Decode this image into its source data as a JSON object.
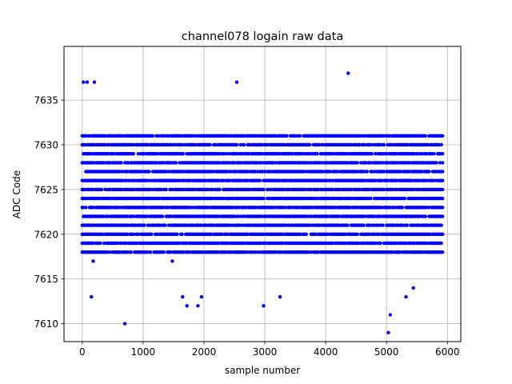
{
  "chart_data": {
    "type": "scatter",
    "title": "channel078 logain raw data",
    "xlabel": "sample number",
    "ylabel": "ADC Code",
    "xlim": [
      -300,
      6220
    ],
    "ylim": [
      7608,
      7641
    ],
    "xticks": [
      0,
      1000,
      2000,
      3000,
      4000,
      5000,
      6000
    ],
    "yticks": [
      7610,
      7615,
      7620,
      7625,
      7630,
      7635
    ],
    "grid": true,
    "marker_color": "#0000ff",
    "n_samples": 5920,
    "sample_step": 20,
    "dense_band": [
      7618,
      7631
    ],
    "outliers": [
      {
        "x": 20,
        "y": 7637
      },
      {
        "x": 80,
        "y": 7637
      },
      {
        "x": 200,
        "y": 7637
      },
      {
        "x": 2540,
        "y": 7637
      },
      {
        "x": 4370,
        "y": 7638
      },
      {
        "x": 150,
        "y": 7613
      },
      {
        "x": 700,
        "y": 7610
      },
      {
        "x": 1650,
        "y": 7613
      },
      {
        "x": 1720,
        "y": 7612
      },
      {
        "x": 1900,
        "y": 7612
      },
      {
        "x": 1960,
        "y": 7613
      },
      {
        "x": 2980,
        "y": 7612
      },
      {
        "x": 3250,
        "y": 7613
      },
      {
        "x": 5030,
        "y": 7609
      },
      {
        "x": 5060,
        "y": 7611
      },
      {
        "x": 5320,
        "y": 7613
      },
      {
        "x": 5440,
        "y": 7614
      }
    ]
  }
}
